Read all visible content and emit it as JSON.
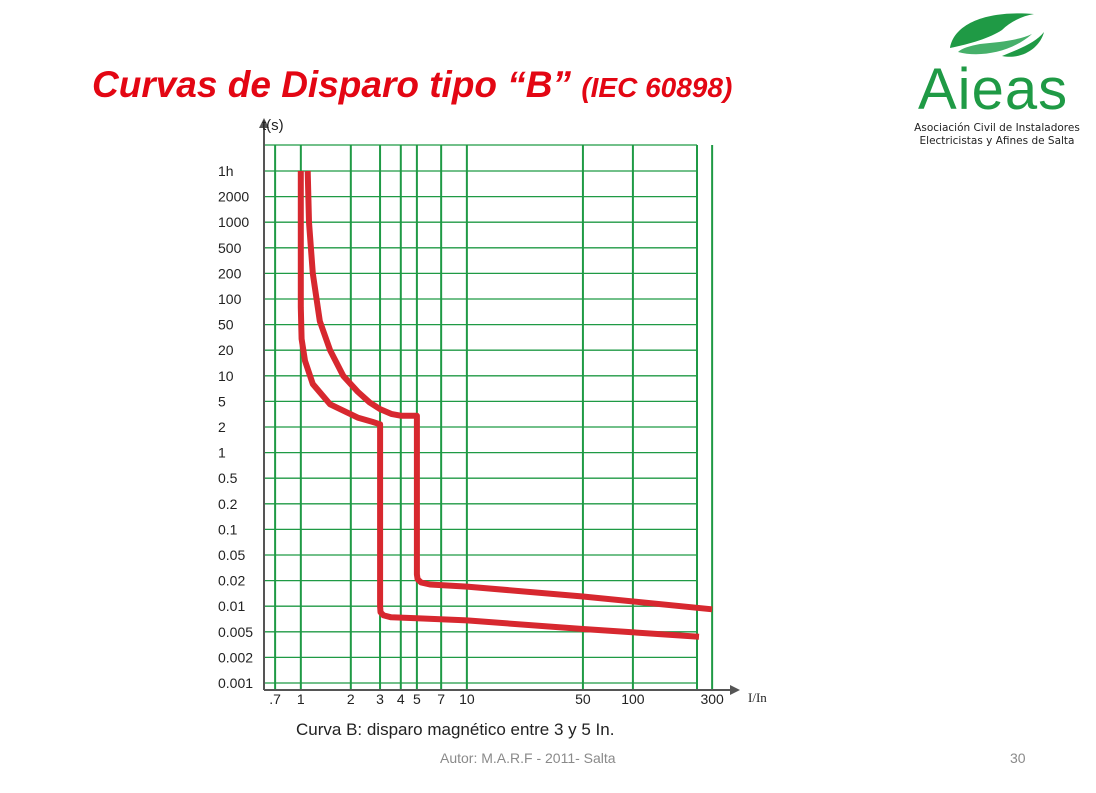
{
  "slide": {
    "title_main": "Curvas de Disparo tipo “B”",
    "title_sub": "(IEC 60898)",
    "footer": "Autor: M.A.R.F - 2011- Salta",
    "page_number": "30"
  },
  "logo": {
    "name": "Aieas",
    "line1": "Asociación Civil de Instaladores",
    "line2": "Electricistas y Afines de Salta",
    "icon": "leaf-icon",
    "color": "#1f9a45"
  },
  "chart_data": {
    "type": "line",
    "title": "",
    "caption": "Curva B: disparo magnético entre 3 y 5 In.",
    "xlabel": "I/In",
    "ylabel": "t(s)",
    "x_scale": "log",
    "y_scale": "log",
    "xlim": [
      0.6,
      330
    ],
    "x_ticks": [
      0.7,
      1,
      2,
      3,
      4,
      5,
      7,
      10,
      50,
      100,
      300
    ],
    "x_tick_labels": [
      ".7",
      "1",
      "2",
      "3",
      "4",
      "5",
      "7",
      "10",
      "50",
      "100",
      "300"
    ],
    "y_ticks": [
      3600,
      2000,
      1000,
      500,
      200,
      100,
      50,
      20,
      10,
      5,
      2,
      1,
      0.5,
      0.2,
      0.1,
      0.05,
      0.02,
      0.01,
      0.005,
      0.002,
      0.001
    ],
    "y_tick_labels": [
      "1h",
      "2000",
      "1000",
      "500",
      "200",
      "100",
      "50",
      "20",
      "10",
      "5",
      "2",
      "1",
      "0.5",
      "0.2",
      "0.1",
      "0.05",
      "0.02",
      "0.01",
      "0.005",
      "0.002",
      "0.001"
    ],
    "grid": true,
    "colors": {
      "curve": "#d7282f",
      "grid": "#1f9a45",
      "axis": "#555555"
    },
    "series": [
      {
        "x": [
          1.0,
          1.0,
          1.01,
          1.06,
          1.18,
          1.5,
          2.2,
          2.7,
          3.0,
          3.0,
          3.02,
          3.15,
          3.5,
          5,
          10,
          50,
          250
        ],
        "y": [
          3600,
          80,
          30,
          15,
          8,
          4.5,
          2.8,
          2.4,
          2.2,
          0.01,
          0.0085,
          0.0078,
          0.0074,
          0.0072,
          0.0068,
          0.0054,
          0.0042
        ]
      },
      {
        "x": [
          1.1,
          1.12,
          1.18,
          1.3,
          1.5,
          1.8,
          2.2,
          2.6,
          3.0,
          3.5,
          4.0,
          4.3,
          5.0,
          5.0,
          5.05,
          5.3,
          6.0,
          10,
          50,
          300
        ],
        "y": [
          3600,
          1000,
          200,
          55,
          20,
          10,
          6.5,
          4.8,
          3.8,
          3.2,
          3.0,
          3.0,
          3.0,
          0.025,
          0.021,
          0.019,
          0.018,
          0.017,
          0.013,
          0.0092
        ]
      }
    ]
  }
}
